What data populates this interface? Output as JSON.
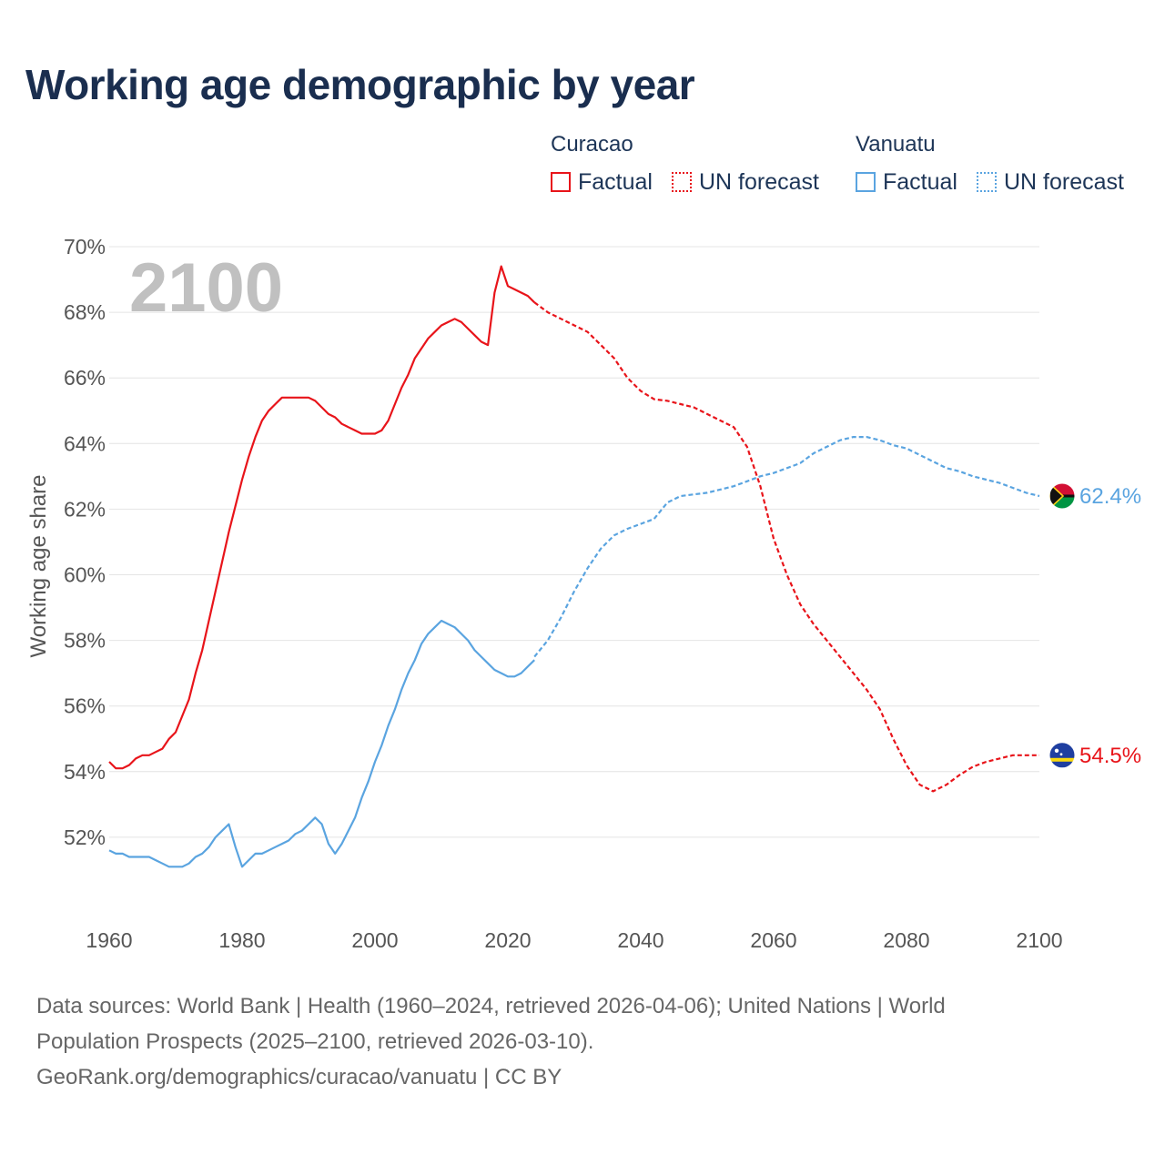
{
  "title": "Working age demographic by year",
  "legend": {
    "groups": [
      {
        "name": "Curacao",
        "color": "#e8141a",
        "factual_label": "Factual",
        "forecast_label": "UN forecast"
      },
      {
        "name": "Vanuatu",
        "color": "#5aa4e0",
        "factual_label": "Factual",
        "forecast_label": "UN forecast"
      }
    ]
  },
  "footer": {
    "line1": "Data sources: World Bank | Health (1960–2024, retrieved 2026-04-06); United Nations | World",
    "line2": "Population Prospects (2025–2100, retrieved 2026-03-10).",
    "line3": "GeoRank.org/demographics/curacao/vanuatu | CC BY"
  },
  "chart_data": {
    "type": "line",
    "title": "Working age demographic by year",
    "xlabel": "",
    "ylabel": "Working age share",
    "year_overlay": "2100",
    "xlim": [
      1960,
      2100
    ],
    "ylim": [
      50,
      70
    ],
    "x_ticks": [
      "1960",
      "1980",
      "2000",
      "2020",
      "2040",
      "2060",
      "2080",
      "2100"
    ],
    "y_ticks": [
      "52%",
      "54%",
      "56%",
      "58%",
      "60%",
      "62%",
      "64%",
      "66%",
      "68%",
      "70%"
    ],
    "grid": true,
    "series": [
      {
        "name": "Curacao",
        "color": "#e8141a",
        "end_label": "54.5%",
        "flag_icon": "curacao-flag-icon",
        "factual": {
          "x": [
            1960,
            1961,
            1962,
            1963,
            1964,
            1965,
            1966,
            1967,
            1968,
            1969,
            1970,
            1971,
            1972,
            1973,
            1974,
            1975,
            1976,
            1977,
            1978,
            1979,
            1980,
            1981,
            1982,
            1983,
            1984,
            1985,
            1986,
            1987,
            1988,
            1989,
            1990,
            1991,
            1992,
            1993,
            1994,
            1995,
            1996,
            1997,
            1998,
            1999,
            2000,
            2001,
            2002,
            2003,
            2004,
            2005,
            2006,
            2007,
            2008,
            2009,
            2010,
            2011,
            2012,
            2013,
            2014,
            2015,
            2016,
            2017,
            2018,
            2019,
            2020,
            2021,
            2022,
            2023,
            2024
          ],
          "y": [
            54.3,
            54.1,
            54.1,
            54.2,
            54.4,
            54.5,
            54.5,
            54.6,
            54.7,
            55.0,
            55.2,
            55.7,
            56.2,
            57.0,
            57.7,
            58.6,
            59.5,
            60.4,
            61.3,
            62.1,
            62.9,
            63.6,
            64.2,
            64.7,
            65.0,
            65.2,
            65.4,
            65.4,
            65.4,
            65.4,
            65.4,
            65.3,
            65.1,
            64.9,
            64.8,
            64.6,
            64.5,
            64.4,
            64.3,
            64.3,
            64.3,
            64.4,
            64.7,
            65.2,
            65.7,
            66.1,
            66.6,
            66.9,
            67.2,
            67.4,
            67.6,
            67.7,
            67.8,
            67.7,
            67.5,
            67.3,
            67.1,
            67.0,
            68.6,
            69.4,
            68.8,
            68.7,
            68.6,
            68.5,
            68.3
          ]
        },
        "forecast": {
          "x": [
            2024,
            2026,
            2028,
            2030,
            2032,
            2034,
            2036,
            2038,
            2040,
            2042,
            2044,
            2046,
            2048,
            2050,
            2052,
            2054,
            2056,
            2058,
            2060,
            2062,
            2064,
            2066,
            2068,
            2070,
            2072,
            2074,
            2076,
            2078,
            2080,
            2082,
            2084,
            2086,
            2088,
            2090,
            2092,
            2094,
            2096,
            2098,
            2100
          ],
          "y": [
            68.3,
            68.0,
            67.8,
            67.6,
            67.4,
            67.0,
            66.6,
            66.0,
            65.6,
            65.35,
            65.3,
            65.2,
            65.1,
            64.9,
            64.7,
            64.5,
            63.9,
            62.7,
            61.1,
            60.0,
            59.1,
            58.5,
            58.0,
            57.5,
            57.0,
            56.5,
            55.9,
            55.0,
            54.2,
            53.6,
            53.4,
            53.6,
            53.9,
            54.15,
            54.3,
            54.4,
            54.5,
            54.5,
            54.5
          ]
        }
      },
      {
        "name": "Vanuatu",
        "color": "#5aa4e0",
        "end_label": "62.4%",
        "flag_icon": "vanuatu-flag-icon",
        "factual": {
          "x": [
            1960,
            1961,
            1962,
            1963,
            1964,
            1965,
            1966,
            1967,
            1968,
            1969,
            1970,
            1971,
            1972,
            1973,
            1974,
            1975,
            1976,
            1977,
            1978,
            1979,
            1980,
            1981,
            1982,
            1983,
            1984,
            1985,
            1986,
            1987,
            1988,
            1989,
            1990,
            1991,
            1992,
            1993,
            1994,
            1995,
            1996,
            1997,
            1998,
            1999,
            2000,
            2001,
            2002,
            2003,
            2004,
            2005,
            2006,
            2007,
            2008,
            2009,
            2010,
            2011,
            2012,
            2013,
            2014,
            2015,
            2016,
            2017,
            2018,
            2019,
            2020,
            2021,
            2022,
            2023,
            2024
          ],
          "y": [
            51.6,
            51.5,
            51.5,
            51.4,
            51.4,
            51.4,
            51.4,
            51.3,
            51.2,
            51.1,
            51.1,
            51.1,
            51.2,
            51.4,
            51.5,
            51.7,
            52.0,
            52.2,
            52.4,
            51.7,
            51.1,
            51.3,
            51.5,
            51.5,
            51.6,
            51.7,
            51.8,
            51.9,
            52.1,
            52.2,
            52.4,
            52.6,
            52.4,
            51.8,
            51.5,
            51.8,
            52.2,
            52.6,
            53.2,
            53.7,
            54.3,
            54.8,
            55.4,
            55.9,
            56.5,
            57.0,
            57.4,
            57.9,
            58.2,
            58.4,
            58.6,
            58.5,
            58.4,
            58.2,
            58.0,
            57.7,
            57.5,
            57.3,
            57.1,
            57.0,
            56.9,
            56.9,
            57.0,
            57.2,
            57.4
          ]
        },
        "forecast": {
          "x": [
            2024,
            2026,
            2028,
            2030,
            2032,
            2034,
            2036,
            2038,
            2040,
            2042,
            2044,
            2046,
            2048,
            2050,
            2052,
            2054,
            2056,
            2058,
            2060,
            2062,
            2064,
            2066,
            2068,
            2070,
            2072,
            2074,
            2076,
            2078,
            2080,
            2082,
            2084,
            2086,
            2088,
            2090,
            2092,
            2094,
            2096,
            2098,
            2100
          ],
          "y": [
            57.5,
            58.0,
            58.7,
            59.5,
            60.2,
            60.8,
            61.2,
            61.4,
            61.55,
            61.7,
            62.2,
            62.4,
            62.45,
            62.5,
            62.6,
            62.7,
            62.85,
            63.0,
            63.1,
            63.25,
            63.4,
            63.7,
            63.9,
            64.1,
            64.2,
            64.2,
            64.1,
            63.95,
            63.85,
            63.65,
            63.45,
            63.25,
            63.15,
            63.0,
            62.9,
            62.8,
            62.65,
            62.5,
            62.4
          ]
        }
      }
    ]
  }
}
